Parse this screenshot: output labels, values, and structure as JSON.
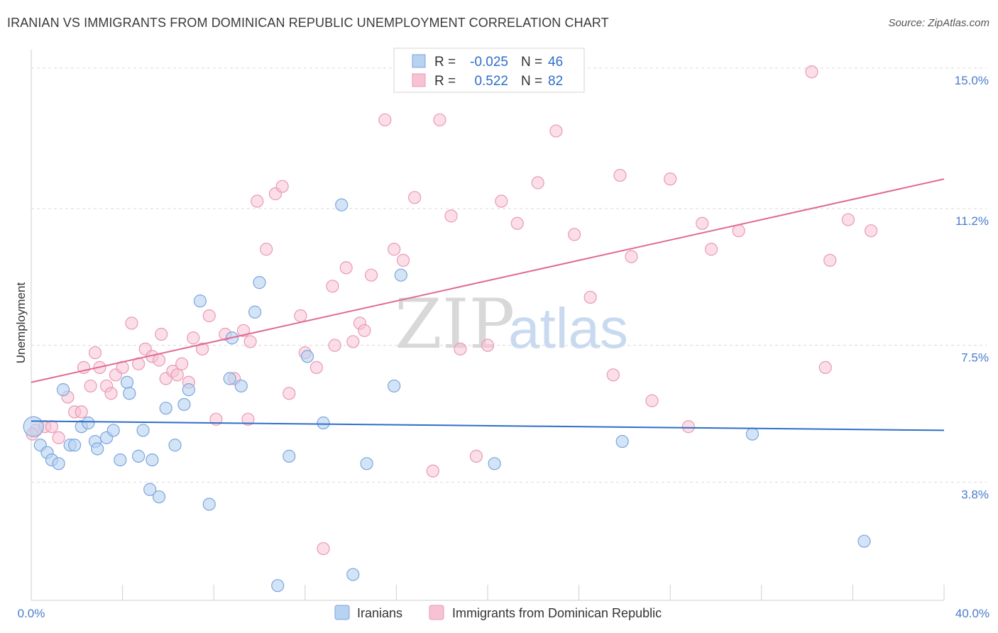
{
  "title": "IRANIAN VS IMMIGRANTS FROM DOMINICAN REPUBLIC UNEMPLOYMENT CORRELATION CHART",
  "source": "Source: ZipAtlas.com",
  "watermark": {
    "zip": "ZIP",
    "atlas": "atlas"
  },
  "colors": {
    "blue_fill": "#b8d2f2",
    "blue_stroke": "#7aa6dd",
    "blue_line": "#2f6ec7",
    "pink_fill": "#f7c3d3",
    "pink_stroke": "#e99ab4",
    "pink_line": "#e06a93",
    "grid": "#d9d9d9",
    "tick_label": "#4a7cc9"
  },
  "legend": {
    "r_label": "R =",
    "n_label": "N =",
    "rows": [
      {
        "r": "-0.025",
        "n": "46"
      },
      {
        "r": "0.522",
        "n": "82"
      }
    ]
  },
  "chart_data": {
    "type": "scatter",
    "title": "IRANIAN VS IMMIGRANTS FROM DOMINICAN REPUBLIC UNEMPLOYMENT CORRELATION CHART",
    "xlabel": "",
    "ylabel": "Unemployment",
    "xlim": [
      0,
      40
    ],
    "ylim": [
      0.6,
      15.5
    ],
    "x_tick_labels": [
      "0.0%",
      "40.0%"
    ],
    "y_ticks": [
      3.8,
      7.5,
      11.2,
      15.0
    ],
    "y_tick_labels": [
      "3.8%",
      "7.5%",
      "11.2%",
      "15.0%"
    ],
    "grid": true,
    "legend_position": "top-center",
    "series": [
      {
        "name": "Iranians",
        "color": "#b8d2f2",
        "trend": {
          "x": [
            0,
            40
          ],
          "y": [
            5.45,
            5.2
          ]
        },
        "points": [
          [
            0.1,
            5.3
          ],
          [
            0.4,
            4.8
          ],
          [
            0.7,
            4.6
          ],
          [
            0.9,
            4.4
          ],
          [
            1.2,
            4.3
          ],
          [
            1.4,
            6.3
          ],
          [
            1.7,
            4.8
          ],
          [
            1.9,
            4.8
          ],
          [
            2.2,
            5.3
          ],
          [
            2.5,
            5.4
          ],
          [
            2.8,
            4.9
          ],
          [
            2.9,
            4.7
          ],
          [
            3.3,
            5.0
          ],
          [
            3.6,
            5.2
          ],
          [
            3.9,
            4.4
          ],
          [
            4.2,
            6.5
          ],
          [
            4.3,
            6.2
          ],
          [
            4.7,
            4.5
          ],
          [
            4.9,
            5.2
          ],
          [
            5.2,
            3.6
          ],
          [
            5.3,
            4.4
          ],
          [
            5.6,
            3.4
          ],
          [
            5.9,
            5.8
          ],
          [
            6.3,
            4.8
          ],
          [
            6.7,
            5.9
          ],
          [
            6.9,
            6.3
          ],
          [
            7.4,
            8.7
          ],
          [
            7.8,
            3.2
          ],
          [
            8.8,
            7.7
          ],
          [
            8.7,
            6.6
          ],
          [
            9.2,
            6.4
          ],
          [
            9.8,
            8.4
          ],
          [
            10.0,
            9.2
          ],
          [
            10.8,
            1.0
          ],
          [
            11.3,
            4.5
          ],
          [
            12.1,
            7.2
          ],
          [
            12.8,
            5.4
          ],
          [
            13.6,
            11.3
          ],
          [
            14.1,
            1.3
          ],
          [
            14.7,
            4.3
          ],
          [
            15.9,
            6.4
          ],
          [
            16.2,
            9.4
          ],
          [
            20.3,
            4.3
          ],
          [
            25.9,
            4.9
          ],
          [
            31.6,
            5.1
          ],
          [
            36.5,
            2.2
          ]
        ]
      },
      {
        "name": "Immigrants from Dominican Republic",
        "color": "#f7c3d3",
        "trend": {
          "x": [
            0,
            40
          ],
          "y": [
            6.5,
            12.0
          ]
        },
        "points": [
          [
            0.2,
            5.2
          ],
          [
            0.6,
            5.3
          ],
          [
            0.9,
            5.3
          ],
          [
            1.2,
            5.0
          ],
          [
            1.6,
            6.1
          ],
          [
            1.9,
            5.7
          ],
          [
            2.2,
            5.7
          ],
          [
            2.3,
            6.9
          ],
          [
            2.6,
            6.4
          ],
          [
            2.8,
            7.3
          ],
          [
            3.0,
            6.9
          ],
          [
            3.3,
            6.4
          ],
          [
            3.5,
            6.2
          ],
          [
            3.7,
            6.7
          ],
          [
            4.0,
            6.9
          ],
          [
            4.4,
            8.1
          ],
          [
            4.7,
            7.0
          ],
          [
            5.0,
            7.4
          ],
          [
            5.3,
            7.2
          ],
          [
            5.6,
            7.1
          ],
          [
            5.7,
            7.8
          ],
          [
            5.9,
            6.6
          ],
          [
            6.2,
            6.8
          ],
          [
            6.4,
            6.7
          ],
          [
            6.6,
            7.0
          ],
          [
            6.9,
            6.5
          ],
          [
            7.1,
            7.7
          ],
          [
            7.5,
            7.4
          ],
          [
            7.8,
            8.3
          ],
          [
            8.1,
            5.5
          ],
          [
            8.5,
            7.8
          ],
          [
            8.9,
            6.6
          ],
          [
            9.3,
            7.9
          ],
          [
            9.5,
            5.5
          ],
          [
            9.6,
            7.6
          ],
          [
            9.9,
            11.4
          ],
          [
            10.3,
            10.1
          ],
          [
            10.7,
            11.6
          ],
          [
            11.0,
            11.8
          ],
          [
            11.3,
            6.2
          ],
          [
            11.8,
            8.3
          ],
          [
            12.0,
            7.3
          ],
          [
            12.5,
            6.9
          ],
          [
            12.8,
            2.0
          ],
          [
            13.2,
            9.1
          ],
          [
            13.3,
            7.5
          ],
          [
            13.8,
            9.6
          ],
          [
            14.1,
            7.6
          ],
          [
            14.4,
            8.1
          ],
          [
            14.6,
            7.9
          ],
          [
            14.9,
            9.4
          ],
          [
            15.5,
            13.6
          ],
          [
            15.9,
            10.1
          ],
          [
            16.3,
            9.8
          ],
          [
            16.8,
            11.5
          ],
          [
            17.6,
            4.1
          ],
          [
            17.9,
            13.6
          ],
          [
            18.4,
            11.0
          ],
          [
            18.8,
            7.4
          ],
          [
            19.5,
            4.5
          ],
          [
            20.0,
            7.5
          ],
          [
            20.6,
            11.4
          ],
          [
            21.3,
            10.8
          ],
          [
            22.2,
            11.9
          ],
          [
            23.0,
            13.3
          ],
          [
            23.8,
            10.5
          ],
          [
            24.5,
            8.8
          ],
          [
            25.5,
            6.7
          ],
          [
            25.8,
            12.1
          ],
          [
            26.3,
            9.9
          ],
          [
            27.2,
            6.0
          ],
          [
            28.0,
            12.0
          ],
          [
            28.8,
            5.3
          ],
          [
            29.4,
            10.8
          ],
          [
            29.8,
            10.1
          ],
          [
            31.0,
            10.6
          ],
          [
            34.2,
            14.9
          ],
          [
            34.8,
            6.9
          ],
          [
            35.0,
            9.8
          ],
          [
            35.8,
            10.9
          ],
          [
            36.8,
            10.6
          ],
          [
            0.05,
            5.1
          ]
        ]
      }
    ]
  },
  "bottom_legend": [
    {
      "label": "Iranians"
    },
    {
      "label": "Immigrants from Dominican Republic"
    }
  ]
}
